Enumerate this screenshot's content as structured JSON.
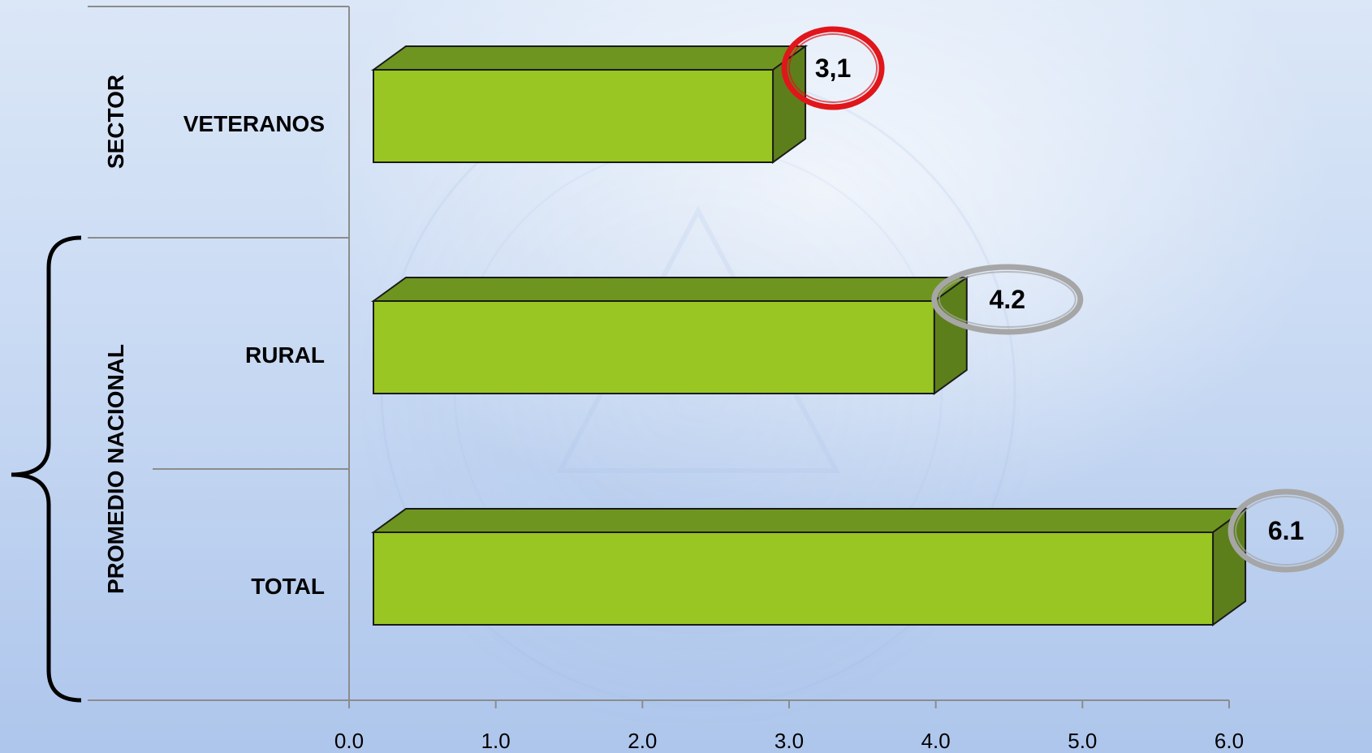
{
  "chart_data": {
    "type": "bar",
    "orientation": "horizontal",
    "style": "3d",
    "categories": [
      "VETERANOS",
      "RURAL",
      "TOTAL"
    ],
    "values": [
      3.1,
      4.2,
      6.1
    ],
    "data_labels": [
      "3,1",
      "4.2",
      "6.1"
    ],
    "highlight": [
      true,
      false,
      false
    ],
    "groups": [
      {
        "label": "SECTOR",
        "categories": [
          "VETERANOS"
        ]
      },
      {
        "label": "PROMEDIO NACIONAL",
        "categories": [
          "RURAL",
          "TOTAL"
        ]
      }
    ],
    "xlim": [
      0,
      6
    ],
    "xticks": [
      "0.0",
      "1.0",
      "2.0",
      "3.0",
      "4.0",
      "5.0",
      "6.0"
    ],
    "legend": "none",
    "grid": false,
    "colors": {
      "bar_front": "#99c623",
      "bar_top": "#6e9520",
      "bar_side": "#5d7f1b",
      "highlight_ring": "#e0161b",
      "normal_ring": "#a6a6a6",
      "axis": "#8c8c8c"
    }
  }
}
